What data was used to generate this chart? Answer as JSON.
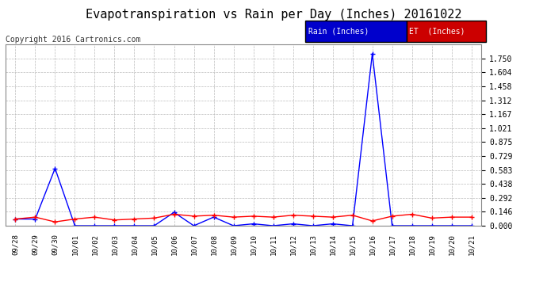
{
  "title": "Evapotranspiration vs Rain per Day (Inches) 20161022",
  "copyright": "Copyright 2016 Cartronics.com",
  "x_labels": [
    "09/28",
    "09/29",
    "09/30",
    "10/01",
    "10/02",
    "10/03",
    "10/04",
    "10/05",
    "10/06",
    "10/07",
    "10/08",
    "10/09",
    "10/10",
    "10/11",
    "10/12",
    "10/13",
    "10/14",
    "10/15",
    "10/16",
    "10/17",
    "10/18",
    "10/19",
    "10/20",
    "10/21"
  ],
  "rain_inches": [
    0.07,
    0.07,
    0.6,
    0.0,
    0.0,
    0.0,
    0.0,
    0.0,
    0.14,
    0.0,
    0.09,
    0.0,
    0.02,
    0.0,
    0.02,
    0.0,
    0.02,
    0.0,
    1.8,
    0.0,
    0.0,
    0.0,
    0.0,
    0.0
  ],
  "et_inches": [
    0.07,
    0.09,
    0.04,
    0.07,
    0.09,
    0.06,
    0.07,
    0.08,
    0.12,
    0.1,
    0.11,
    0.09,
    0.1,
    0.09,
    0.11,
    0.1,
    0.09,
    0.11,
    0.05,
    0.1,
    0.12,
    0.08,
    0.09,
    0.09
  ],
  "rain_color": "#0000ff",
  "et_color": "#ff0000",
  "rain_label": "Rain (Inches)",
  "et_label": "ET  (Inches)",
  "rain_label_bg": "#0000cc",
  "et_label_bg": "#cc0000",
  "label_text_color": "#ffffff",
  "ylim": [
    0.0,
    1.896
  ],
  "yticks": [
    0.0,
    0.146,
    0.292,
    0.438,
    0.583,
    0.729,
    0.875,
    1.021,
    1.167,
    1.312,
    1.458,
    1.604,
    1.75
  ],
  "background_color": "#ffffff",
  "plot_bg_color": "#ffffff",
  "grid_color": "#bbbbbb",
  "title_fontsize": 11,
  "copyright_fontsize": 7
}
